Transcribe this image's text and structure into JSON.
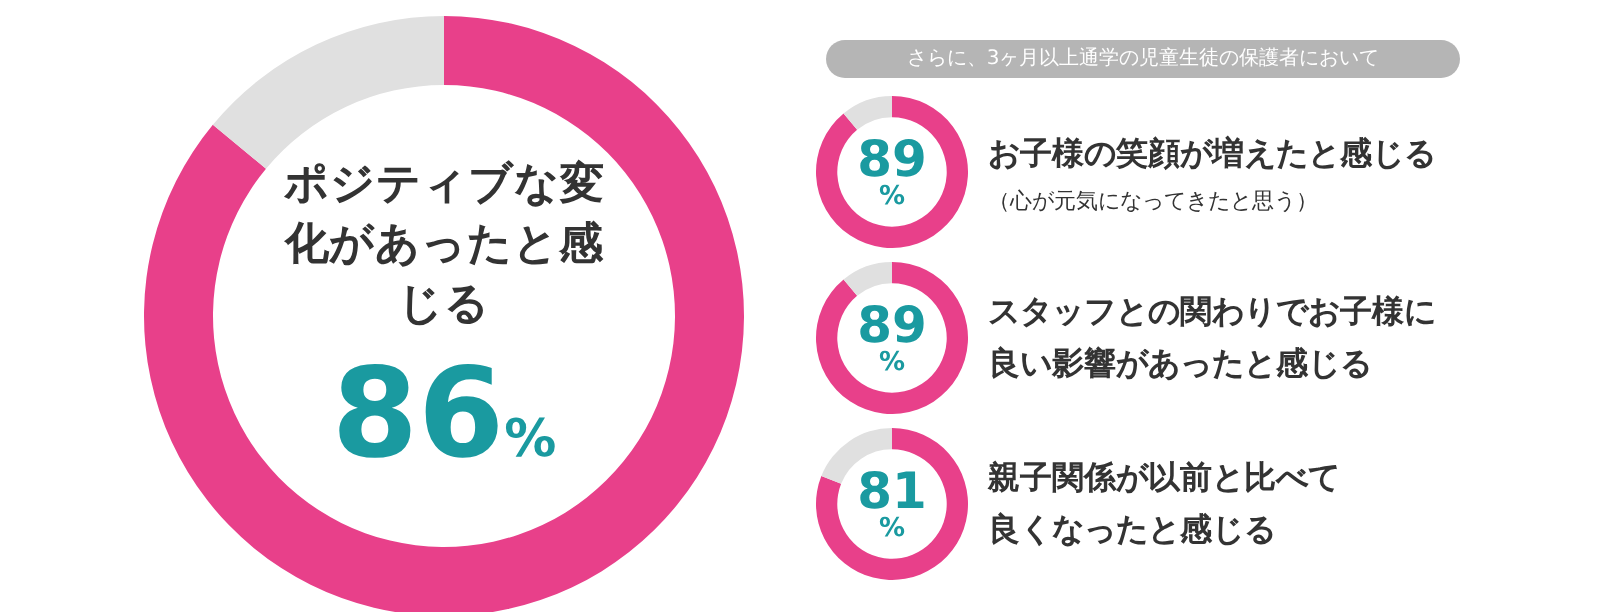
{
  "chart_data": [
    {
      "type": "donut",
      "title": "ポジティブな変化があったと感じる",
      "categories": [
        null,
        null
      ],
      "values": [
        86,
        14
      ],
      "colors": [
        "#e8408a",
        "#e0e0e0"
      ],
      "value_labels": [
        "86%",
        null
      ]
    },
    {
      "type": "donut",
      "title": "お子様の笑顔が増えたと感じる",
      "subtitle": "（心が元気になってきたと思う）",
      "annotations": [
        "さらに、3ヶ月以上通学の児童生徒の保護者において"
      ],
      "categories": [
        null,
        null
      ],
      "values": [
        89,
        11
      ],
      "colors": [
        "#e8408a",
        "#e0e0e0"
      ],
      "value_labels": [
        "89%",
        null
      ]
    },
    {
      "type": "donut",
      "title": "スタッフとの関わりでお子様に良い影響があったと感じる",
      "categories": [
        null,
        null
      ],
      "values": [
        89,
        11
      ],
      "colors": [
        "#e8408a",
        "#e0e0e0"
      ],
      "value_labels": [
        "89%",
        null
      ]
    },
    {
      "type": "donut",
      "title": "親子関係が以前と比べて良くなったと感じる",
      "categories": [
        null,
        null
      ],
      "values": [
        81,
        19
      ],
      "colors": [
        "#e8408a",
        "#e0e0e0"
      ],
      "value_labels": [
        "81%",
        null
      ]
    }
  ]
}
